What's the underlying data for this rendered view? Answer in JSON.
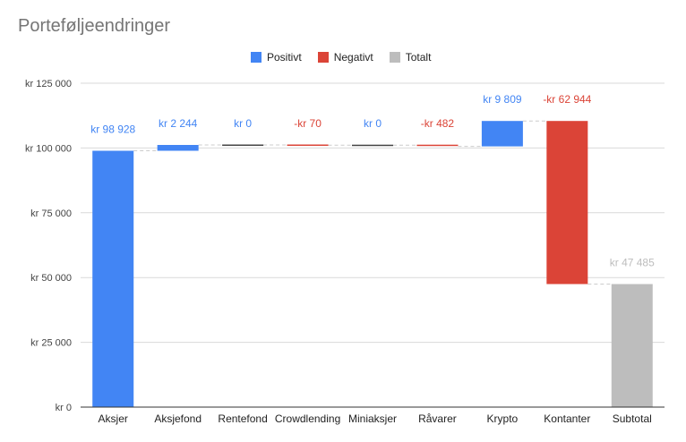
{
  "chart_data": {
    "type": "waterfall",
    "title": "Porteføljeendringer",
    "legend": [
      {
        "label": "Positivt",
        "color": "#4285f4"
      },
      {
        "label": "Negativt",
        "color": "#db4437"
      },
      {
        "label": "Totalt",
        "color": "#bdbdbd"
      }
    ],
    "legend_position": "top-center",
    "categories": [
      "Aksjer",
      "Aksjefond",
      "Rentefond",
      "Crowdlending",
      "Miniaksjer",
      "Råvarer",
      "Krypto",
      "Kontanter",
      "Subtotal"
    ],
    "values": [
      98928,
      2244,
      0,
      -70,
      0,
      -482,
      9809,
      -62944,
      47485
    ],
    "kinds": [
      "positive",
      "positive",
      "positive",
      "negative",
      "positive",
      "negative",
      "positive",
      "negative",
      "total"
    ],
    "data_labels": [
      "kr  98 928",
      "kr  2 244",
      "kr  0",
      "-kr  70",
      "kr  0",
      "-kr  482",
      "kr  9 809",
      "-kr  62 944",
      "kr  47 485"
    ],
    "y_ticks": [
      0,
      25000,
      50000,
      75000,
      100000,
      125000
    ],
    "y_tick_labels": [
      "kr  0",
      "kr  25 000",
      "kr  50 000",
      "kr  75 000",
      "kr  100 000",
      "kr  125 000"
    ],
    "ylim": [
      0,
      125000
    ],
    "grid": true,
    "colors": {
      "positive": "#4285f4",
      "negative": "#db4437",
      "total": "#bdbdbd",
      "grid": "#d9d9d9",
      "axis": "#333333",
      "connector": "#cccccc"
    }
  }
}
